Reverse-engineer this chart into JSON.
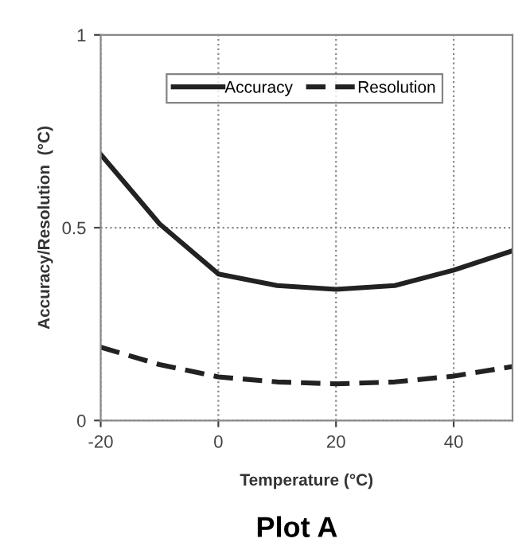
{
  "chart_data": {
    "type": "line",
    "title": "Plot A",
    "xlabel": "Temperature (°C)",
    "ylabel": "Accuracy/Resolution  (°C)",
    "x": [
      -20,
      -10,
      0,
      10,
      20,
      30,
      40,
      50
    ],
    "series": [
      {
        "name": "Accuracy",
        "color": "#222222",
        "line_style": "solid",
        "values": [
          0.69,
          0.51,
          0.38,
          0.35,
          0.34,
          0.35,
          0.39,
          0.44
        ]
      },
      {
        "name": "Resolution",
        "color": "#222222",
        "line_style": "dashed",
        "values": [
          0.19,
          0.145,
          0.113,
          0.1,
          0.095,
          0.1,
          0.115,
          0.14
        ]
      }
    ],
    "xlim": [
      -20,
      50
    ],
    "ylim": [
      0,
      1
    ],
    "xticks": [
      -20,
      0,
      20,
      40
    ],
    "yticks": [
      0,
      0.5,
      1
    ],
    "grid": true,
    "legend": "top right",
    "marker": "none"
  }
}
